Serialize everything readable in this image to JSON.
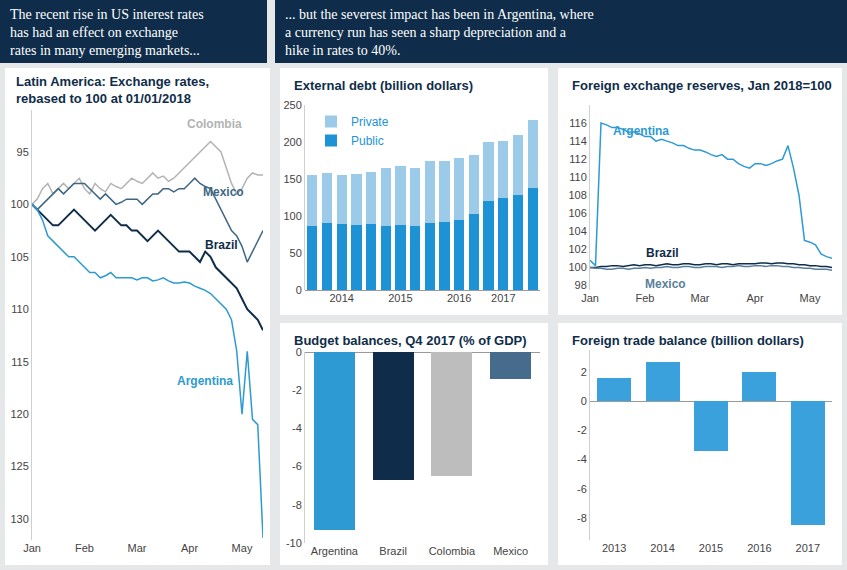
{
  "headline": {
    "left": [
      "The recent rise in US interest rates",
      "has had an effect on exchange",
      "rates in many emerging markets..."
    ],
    "right": [
      "... but the severest impact has been in Argentina, where",
      "a currency run has seen a sharp depreciation and a",
      "hike in rates to 40%."
    ]
  },
  "chart_data": [
    {
      "type": "line",
      "title": "Latin America: Exchange rates,\nrebased to 100 at 01/01/2018",
      "categories": [
        "Jan",
        null,
        null,
        null,
        null,
        null,
        null,
        null,
        null,
        null,
        "Feb",
        null,
        null,
        null,
        null,
        null,
        null,
        null,
        null,
        null,
        "Mar",
        null,
        null,
        null,
        null,
        null,
        null,
        null,
        null,
        null,
        "Apr",
        null,
        null,
        null,
        null,
        null,
        null,
        null,
        null,
        null,
        "May",
        null,
        null,
        null,
        null
      ],
      "series": [
        {
          "name": "Colombia",
          "color": "#b3b3b3",
          "values": [
            100,
            99.5,
            98.5,
            98,
            99,
            98.5,
            98,
            98.5,
            98,
            97.5,
            98.5,
            99,
            98,
            98.5,
            98.8,
            98,
            98.3,
            98.5,
            98,
            97.5,
            97.8,
            98,
            97.5,
            97,
            97.5,
            97.3,
            97.8,
            97.5,
            97,
            96.5,
            96,
            95.5,
            95,
            94.5,
            94,
            94.5,
            95,
            96.5,
            98,
            99,
            98.5,
            97.5,
            97,
            97.2,
            97.2
          ]
        },
        {
          "name": "Mexico",
          "color": "#3e6785",
          "values": [
            100,
            100.5,
            100,
            99.5,
            99,
            98.5,
            99,
            98.5,
            98,
            98,
            98,
            98.5,
            99,
            99.5,
            99,
            99.5,
            100,
            99.8,
            99.5,
            99.5,
            99.5,
            100,
            99.5,
            99,
            99,
            98.5,
            98.5,
            98.8,
            98.5,
            98.5,
            98,
            97.5,
            98,
            98.3,
            98.5,
            99.5,
            100.5,
            101.5,
            102.5,
            103,
            104,
            105.5,
            104.5,
            103.5,
            102.5
          ]
        },
        {
          "name": "Brazil",
          "color": "#0f2d4a",
          "values": [
            100,
            100.5,
            101,
            101.5,
            102,
            102,
            101.5,
            101,
            100.5,
            101,
            101.5,
            102,
            102.5,
            102,
            101.5,
            101,
            101.5,
            102,
            102,
            102.5,
            102.5,
            103,
            103.5,
            103,
            102.5,
            103,
            103.5,
            104,
            104.5,
            104.5,
            104.5,
            105,
            105.5,
            104.5,
            105,
            106,
            106.5,
            107,
            107.5,
            108,
            109,
            110,
            110.5,
            111,
            112
          ]
        },
        {
          "name": "Argentina",
          "color": "#2e9ad3",
          "values": [
            100,
            100.5,
            101.5,
            103,
            103.5,
            104,
            104.5,
            105,
            105,
            105.5,
            106,
            106.5,
            106.5,
            107,
            106.8,
            106.5,
            107,
            107,
            107,
            107,
            107.2,
            107,
            107,
            107.3,
            107.2,
            107,
            107.3,
            107.5,
            107.5,
            107.4,
            107.5,
            107.8,
            108,
            108.2,
            108.5,
            109,
            109.5,
            110,
            111,
            114,
            120,
            114,
            120.5,
            121,
            131.8
          ]
        }
      ],
      "ylim": [
        132,
        91
      ],
      "yticks": [
        95,
        100,
        105,
        110,
        115,
        120,
        125,
        130
      ],
      "grid": false
    },
    {
      "type": "bar",
      "title": "External debt (billion dollars)",
      "categories": [
        null,
        null,
        "2014",
        null,
        null,
        null,
        "2015",
        null,
        null,
        null,
        "2016",
        null,
        null,
        "2017",
        null,
        null
      ],
      "series": [
        {
          "name": "Public",
          "color": "#1d93d6",
          "values": [
            87,
            90,
            89,
            88,
            89,
            87,
            88,
            87,
            90,
            92,
            95,
            103,
            120,
            125,
            128,
            138
          ]
        },
        {
          "name": "Private",
          "color": "#9ccbea",
          "values": [
            68,
            68,
            66,
            69,
            71,
            78,
            80,
            78,
            85,
            83,
            83,
            79,
            80,
            77,
            82,
            92
          ]
        }
      ],
      "stacked": true,
      "legend": "upper left",
      "ylim": [
        0,
        250
      ],
      "yticks": [
        0,
        50,
        100,
        150,
        200,
        250
      ],
      "grid": false
    },
    {
      "type": "line",
      "title": "Foreign exchange reserves, Jan 2018=100",
      "categories": [
        "Jan",
        null,
        null,
        null,
        null,
        null,
        null,
        null,
        null,
        null,
        "Feb",
        null,
        null,
        null,
        null,
        null,
        null,
        null,
        null,
        null,
        "Mar",
        null,
        null,
        null,
        null,
        null,
        null,
        null,
        null,
        null,
        "Apr",
        null,
        null,
        null,
        null,
        null,
        null,
        null,
        null,
        null,
        "May",
        null,
        null,
        null,
        null
      ],
      "series": [
        {
          "name": "Argentina",
          "color": "#2e9ad3",
          "values": [
            100.8,
            100.2,
            116,
            115.8,
            115.5,
            115.5,
            115.3,
            115,
            115,
            114.8,
            114.5,
            114.5,
            114,
            114.2,
            114,
            113.8,
            113.5,
            113.5,
            113.2,
            113,
            113,
            112.8,
            112.5,
            112.3,
            112.5,
            112,
            112,
            111.5,
            111.2,
            111,
            111.5,
            111.5,
            111.3,
            111.5,
            111.8,
            112,
            113.5,
            111,
            108,
            103,
            102.8,
            102.5,
            101.5,
            101.2,
            101
          ]
        },
        {
          "name": "Brazil",
          "color": "#0f2d4a",
          "values": [
            100,
            100,
            100.1,
            100.1,
            100.2,
            100.2,
            100.1,
            100.2,
            100.3,
            100.2,
            100.3,
            100.3,
            100.2,
            100.3,
            100.4,
            100.3,
            100.3,
            100.4,
            100.4,
            100.3,
            100.3,
            100.4,
            100.4,
            100.3,
            100.4,
            100.4,
            100.3,
            100.4,
            100.4,
            100.4,
            100.4,
            100.5,
            100.5,
            100.4,
            100.5,
            100.5,
            100.4,
            100.4,
            100.3,
            100.3,
            100.2,
            100.2,
            100.1,
            100.1,
            100
          ]
        },
        {
          "name": "Mexico",
          "color": "#5a7f9c",
          "values": [
            100,
            99.9,
            99.9,
            99.8,
            99.8,
            99.9,
            99.9,
            99.8,
            99.9,
            99.9,
            100,
            99.9,
            100,
            100,
            100.1,
            100,
            100,
            100.1,
            100.1,
            100,
            100,
            100.1,
            100.1,
            100.1,
            100,
            100.1,
            100.1,
            100.2,
            100.1,
            100.1,
            100.2,
            100.2,
            100.1,
            100.2,
            100.2,
            100.1,
            100.1,
            100,
            100,
            99.9,
            99.9,
            99.8,
            99.8,
            99.8,
            99.7
          ]
        }
      ],
      "ylim": [
        97.5,
        118
      ],
      "yticks": [
        98,
        100,
        102,
        104,
        106,
        108,
        110,
        112,
        114,
        116
      ],
      "grid": false
    },
    {
      "type": "bar",
      "title": "Budget balances, Q4 2017 (% of GDP)",
      "categories": [
        "Argentina",
        "Brazil",
        "Colombia",
        "Mexico"
      ],
      "values": [
        -9.3,
        -6.7,
        -6.5,
        -1.4
      ],
      "colors": [
        "#2e9ad3",
        "#0f2d4a",
        "#bdbdbd",
        "#466b8c"
      ],
      "ylim": [
        -10,
        0
      ],
      "yticks": [
        0,
        -2,
        -4,
        -6,
        -8,
        -10
      ],
      "grid": false
    },
    {
      "type": "bar",
      "title": "Foreign trade balance (billion dollars)",
      "categories": [
        "2013",
        "2014",
        "2015",
        "2016",
        "2017"
      ],
      "values": [
        1.6,
        2.7,
        -3.4,
        2.0,
        -8.5
      ],
      "color": "#3aa1dc",
      "ylim": [
        -9.5,
        3.5
      ],
      "yticks": [
        2,
        0,
        -2,
        -4,
        -6,
        -8
      ],
      "grid": false
    }
  ]
}
